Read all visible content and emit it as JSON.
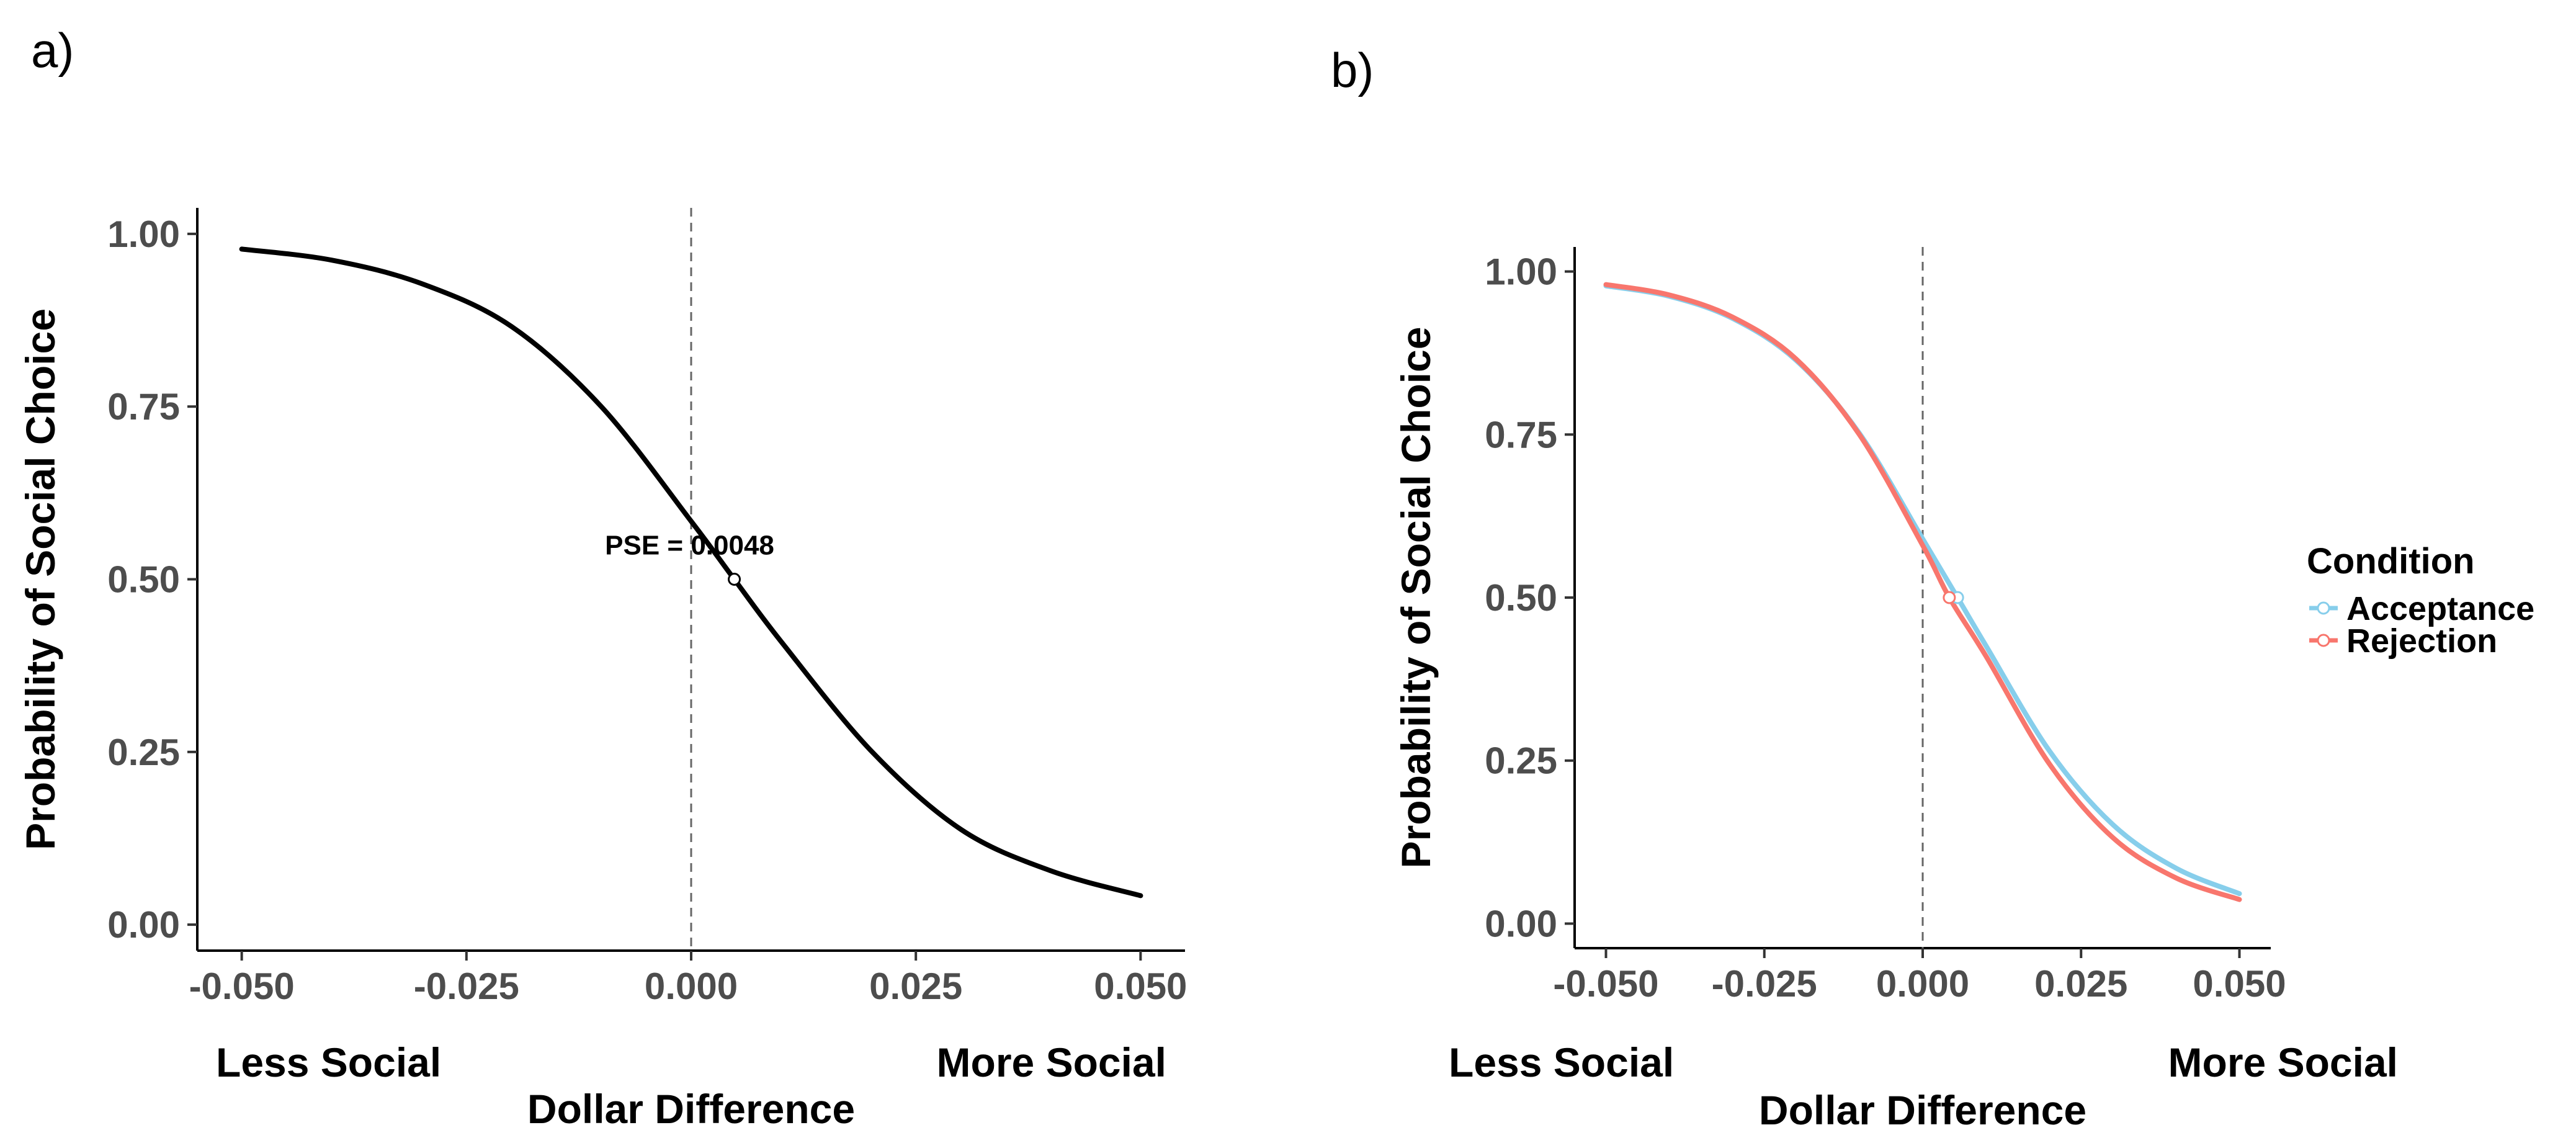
{
  "chart_data": [
    {
      "panel": "a)",
      "type": "line",
      "xlabel": "Dollar Difference",
      "ylabel": "Probability of Social Choice",
      "x_direction_labels": {
        "left": "Less Social",
        "right": "More Social"
      },
      "xlim": [
        -0.05,
        0.05
      ],
      "ylim": [
        0,
        1
      ],
      "x_ticks": [
        -0.05,
        -0.025,
        0,
        0.025,
        0.05
      ],
      "x_tick_labels": [
        "-0.050",
        "-0.025",
        "0.000",
        "0.025",
        "0.050"
      ],
      "y_ticks": [
        0,
        0.25,
        0.5,
        0.75,
        1
      ],
      "y_tick_labels": [
        "0.00",
        "0.25",
        "0.50",
        "0.75",
        "1.00"
      ],
      "grid": false,
      "reference_line": {
        "x": 0,
        "style": "dashed"
      },
      "series": [
        {
          "color": "#000000",
          "x": [
            -0.05,
            -0.04,
            -0.03,
            -0.02,
            -0.01,
            0,
            0.0048,
            0.01,
            0.02,
            0.03,
            0.04,
            0.05
          ],
          "y": [
            0.978,
            0.962,
            0.928,
            0.866,
            0.75,
            0.584,
            0.5,
            0.41,
            0.252,
            0.138,
            0.078,
            0.042
          ]
        }
      ],
      "pse_point": {
        "x": 0.0048,
        "y": 0.5,
        "label": "PSE = 0.0048"
      }
    },
    {
      "panel": "b)",
      "type": "line",
      "xlabel": "Dollar Difference",
      "ylabel": "Probability of Social Choice",
      "x_direction_labels": {
        "left": "Less Social",
        "right": "More Social"
      },
      "xlim": [
        -0.05,
        0.05
      ],
      "ylim": [
        0,
        1
      ],
      "x_ticks": [
        -0.05,
        -0.025,
        0,
        0.025,
        0.05
      ],
      "x_tick_labels": [
        "-0.050",
        "-0.025",
        "0.000",
        "0.025",
        "0.050"
      ],
      "y_ticks": [
        0,
        0.25,
        0.5,
        0.75,
        1
      ],
      "y_tick_labels": [
        "0.00",
        "0.25",
        "0.50",
        "0.75",
        "1.00"
      ],
      "grid": false,
      "reference_line": {
        "x": 0,
        "style": "dashed"
      },
      "legend": {
        "title": "Condition",
        "position": "right"
      },
      "series": [
        {
          "name": "Acceptance",
          "color": "#87CEEB",
          "x": [
            -0.05,
            -0.04,
            -0.03,
            -0.02,
            -0.01,
            0,
            0.0055,
            0.01,
            0.02,
            0.03,
            0.04,
            0.05
          ],
          "y": [
            0.978,
            0.962,
            0.928,
            0.864,
            0.752,
            0.59,
            0.5,
            0.426,
            0.265,
            0.152,
            0.085,
            0.046
          ],
          "pse_point": {
            "x": 0.0055,
            "y": 0.5
          }
        },
        {
          "name": "Rejection",
          "color": "#F8766D",
          "x": [
            -0.05,
            -0.04,
            -0.03,
            -0.02,
            -0.01,
            0,
            0.0042,
            0.01,
            0.02,
            0.03,
            0.04,
            0.05
          ],
          "y": [
            0.98,
            0.964,
            0.93,
            0.866,
            0.75,
            0.58,
            0.5,
            0.41,
            0.245,
            0.132,
            0.07,
            0.037
          ],
          "pse_point": {
            "x": 0.0042,
            "y": 0.5
          }
        }
      ]
    }
  ]
}
